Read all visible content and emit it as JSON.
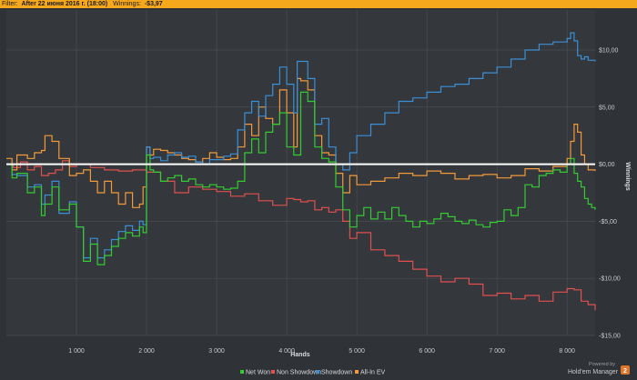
{
  "filter_bar": {
    "filter_label": "Filter:",
    "filter_value": "After 22 июня 2016 г. (18:00)",
    "winnings_label": "Winnings:",
    "winnings_value": "-$3,97",
    "background_color": "#f6a81c"
  },
  "branding": {
    "powered_by": "Powered by",
    "product": "Hold'em Manager",
    "icon": "hm-logo-icon"
  },
  "chart_data": {
    "type": "line",
    "xlabel": "Hands",
    "ylabel": "Winnings",
    "xlim": [
      0,
      8400
    ],
    "ylim": [
      -15,
      13.5
    ],
    "x_ticks": [
      1000,
      2000,
      3000,
      4000,
      5000,
      6000,
      7000,
      8000
    ],
    "x_tick_labels": [
      "1 000",
      "2 000",
      "3 000",
      "4 000",
      "5 000",
      "6 000",
      "7 000",
      "8 000"
    ],
    "y_ticks": [
      10,
      5,
      0,
      -5,
      -10,
      -15
    ],
    "y_tick_labels": [
      "$10,00",
      "$5,00",
      "$0,00",
      "-$5,00",
      "-$10,00",
      "-$15,00"
    ],
    "y_axis_side": "right",
    "grid": true,
    "zero_line": true,
    "legend_position": "bottom-right",
    "series": [
      {
        "name": "Net Won",
        "color": "#33cc33",
        "x": [
          0,
          80,
          150,
          300,
          400,
          500,
          550,
          650,
          750,
          900,
          1000,
          1100,
          1200,
          1300,
          1400,
          1500,
          1600,
          1700,
          1800,
          1900,
          1950,
          2000,
          2050,
          2100,
          2200,
          2300,
          2400,
          2500,
          2600,
          2700,
          2800,
          2900,
          3000,
          3100,
          3200,
          3300,
          3400,
          3500,
          3600,
          3700,
          3800,
          3900,
          4000,
          4100,
          4200,
          4300,
          4400,
          4500,
          4600,
          4700,
          4800,
          4900,
          5000,
          5100,
          5200,
          5300,
          5400,
          5500,
          5600,
          5700,
          5800,
          5900,
          6000,
          6100,
          6200,
          6300,
          6400,
          6500,
          6600,
          6700,
          6800,
          6900,
          7000,
          7100,
          7200,
          7300,
          7400,
          7500,
          7600,
          7700,
          7800,
          7900,
          8000,
          8050,
          8100,
          8150,
          8200,
          8250,
          8300,
          8350,
          8400
        ],
        "values": [
          0,
          -1.2,
          -0.8,
          -2.5,
          -2.0,
          -4.5,
          -3.5,
          -2.0,
          -4.0,
          -3.5,
          -5.5,
          -8.5,
          -7.0,
          -8.8,
          -8.0,
          -7.2,
          -6.5,
          -6.0,
          -6.3,
          -5.5,
          -6.0,
          0.8,
          -0.5,
          -0.7,
          -1.5,
          -1.2,
          -1.0,
          -1.5,
          -1.3,
          -1.8,
          -2.0,
          -1.8,
          -2.0,
          -2.2,
          -2.1,
          -1.5,
          1.0,
          2.2,
          1.0,
          2.8,
          3.5,
          4.5,
          1.5,
          0.8,
          6.3,
          5.5,
          1.5,
          0.5,
          0.2,
          -2.0,
          -4.0,
          -5.5,
          -4.5,
          -3.8,
          -4.8,
          -4.2,
          -4.8,
          -3.8,
          -4.5,
          -5.0,
          -5.5,
          -5.0,
          -5.2,
          -4.8,
          -4.3,
          -4.6,
          -5.0,
          -5.2,
          -4.9,
          -5.3,
          -5.5,
          -5.1,
          -5.0,
          -4.0,
          -4.5,
          -3.8,
          -1.8,
          -2.0,
          -1.0,
          -0.8,
          -0.5,
          -0.7,
          0.0,
          0.5,
          -0.8,
          -1.5,
          -2.0,
          -3.0,
          -3.5,
          -3.8,
          -4.0
        ]
      },
      {
        "name": "Non Showdown",
        "color": "#e05050",
        "x": [
          0,
          100,
          200,
          300,
          400,
          500,
          600,
          700,
          800,
          900,
          1000,
          1200,
          1400,
          1600,
          1800,
          2000,
          2200,
          2400,
          2600,
          2800,
          3000,
          3200,
          3400,
          3600,
          3800,
          4000,
          4100,
          4200,
          4300,
          4400,
          4500,
          4600,
          4700,
          4800,
          4900,
          5000,
          5200,
          5400,
          5600,
          5800,
          6000,
          6200,
          6400,
          6600,
          6800,
          7000,
          7200,
          7400,
          7600,
          7800,
          8000,
          8100,
          8200,
          8300,
          8400
        ],
        "values": [
          0,
          -0.3,
          0.2,
          -0.5,
          -0.2,
          -1.0,
          -0.8,
          -0.5,
          0.3,
          -0.2,
          0.0,
          -0.3,
          -0.5,
          -0.6,
          -0.5,
          -0.7,
          -1.5,
          -2.5,
          -2.0,
          -2.2,
          -2.4,
          -2.8,
          -2.6,
          -3.2,
          -3.6,
          -3.0,
          -3.1,
          -3.3,
          -3.2,
          -4.0,
          -3.8,
          -4.2,
          -4.0,
          -5.0,
          -6.5,
          -6.0,
          -7.5,
          -8.0,
          -8.5,
          -9.2,
          -9.8,
          -10.3,
          -10.0,
          -10.5,
          -11.5,
          -11.3,
          -11.8,
          -11.5,
          -12.0,
          -11.2,
          -10.9,
          -11.0,
          -12.0,
          -12.3,
          -12.8
        ]
      },
      {
        "name": "Showdown",
        "color": "#3b8fd6",
        "x": [
          0,
          80,
          150,
          300,
          400,
          500,
          550,
          650,
          750,
          900,
          1000,
          1100,
          1200,
          1300,
          1400,
          1500,
          1600,
          1700,
          1800,
          1900,
          1950,
          2000,
          2050,
          2100,
          2200,
          2300,
          2400,
          2500,
          2600,
          2700,
          2800,
          2900,
          3000,
          3100,
          3200,
          3300,
          3400,
          3500,
          3600,
          3700,
          3800,
          3900,
          4000,
          4100,
          4150,
          4200,
          4300,
          4400,
          4500,
          4600,
          4700,
          4800,
          4900,
          5000,
          5200,
          5400,
          5600,
          5800,
          6000,
          6200,
          6400,
          6600,
          6800,
          7000,
          7200,
          7400,
          7600,
          7800,
          8000,
          8050,
          8100,
          8150,
          8200,
          8250,
          8300,
          8400
        ],
        "values": [
          0,
          -0.9,
          -1.0,
          -2.0,
          -1.8,
          -3.5,
          -2.7,
          -1.5,
          -4.3,
          -3.3,
          -5.5,
          -8.2,
          -6.5,
          -8.2,
          -7.5,
          -6.6,
          -5.9,
          -5.4,
          -5.8,
          -5.0,
          -5.3,
          1.5,
          0.5,
          0.6,
          0.3,
          0.8,
          1.0,
          0.6,
          0.7,
          0.2,
          0.0,
          0.4,
          0.4,
          0.7,
          0.9,
          3.0,
          4.5,
          5.5,
          4.2,
          6.0,
          7.0,
          8.5,
          7.0,
          4.5,
          9.0,
          9.0,
          7.5,
          3.5,
          4.0,
          1.5,
          0.0,
          -0.5,
          1.0,
          2.5,
          3.5,
          4.5,
          5.5,
          5.8,
          6.3,
          6.8,
          7.0,
          7.5,
          8.0,
          8.5,
          9.2,
          10.0,
          10.5,
          10.7,
          11.0,
          11.5,
          10.8,
          9.5,
          9.2,
          9.4,
          9.1,
          9.0
        ]
      },
      {
        "name": "All-In EV",
        "color": "#f29a3a",
        "x": [
          0,
          80,
          150,
          300,
          400,
          500,
          550,
          650,
          750,
          900,
          1000,
          1100,
          1200,
          1300,
          1400,
          1500,
          1600,
          1700,
          1800,
          1900,
          1950,
          2000,
          2050,
          2100,
          2200,
          2300,
          2400,
          2500,
          2600,
          2700,
          2800,
          2900,
          3000,
          3100,
          3200,
          3300,
          3400,
          3500,
          3600,
          3700,
          3800,
          3900,
          4000,
          4100,
          4150,
          4200,
          4300,
          4400,
          4500,
          4600,
          4700,
          4800,
          4900,
          5000,
          5200,
          5400,
          5600,
          5800,
          6000,
          6200,
          6400,
          6600,
          6800,
          7000,
          7200,
          7400,
          7600,
          7800,
          8000,
          8050,
          8100,
          8150,
          8200,
          8250,
          8300,
          8400
        ],
        "values": [
          0.5,
          -0.5,
          0.8,
          0.5,
          1.0,
          1.2,
          2.5,
          2.0,
          0.5,
          -1.0,
          -0.8,
          -0.5,
          -1.5,
          -2.5,
          -1.5,
          -2.5,
          -3.5,
          -2.5,
          -3.8,
          -3.5,
          -2.0,
          1.5,
          0.8,
          1.3,
          1.2,
          1.0,
          0.8,
          0.5,
          0.4,
          0.2,
          0.5,
          1.0,
          0.6,
          0.4,
          0.5,
          1.5,
          3.5,
          2.5,
          5.0,
          4.0,
          3.5,
          6.5,
          4.5,
          1.5,
          7.5,
          7.3,
          6.5,
          2.5,
          1.0,
          0.8,
          -0.8,
          -2.5,
          -1.0,
          -1.8,
          -1.5,
          -1.2,
          -0.8,
          -1.0,
          -0.6,
          -0.8,
          -1.3,
          -1.0,
          -0.9,
          -1.2,
          -1.0,
          -0.4,
          -0.6,
          -0.2,
          0.5,
          2.0,
          3.5,
          2.8,
          0.8,
          0.0,
          -0.5,
          -0.6
        ]
      }
    ]
  }
}
